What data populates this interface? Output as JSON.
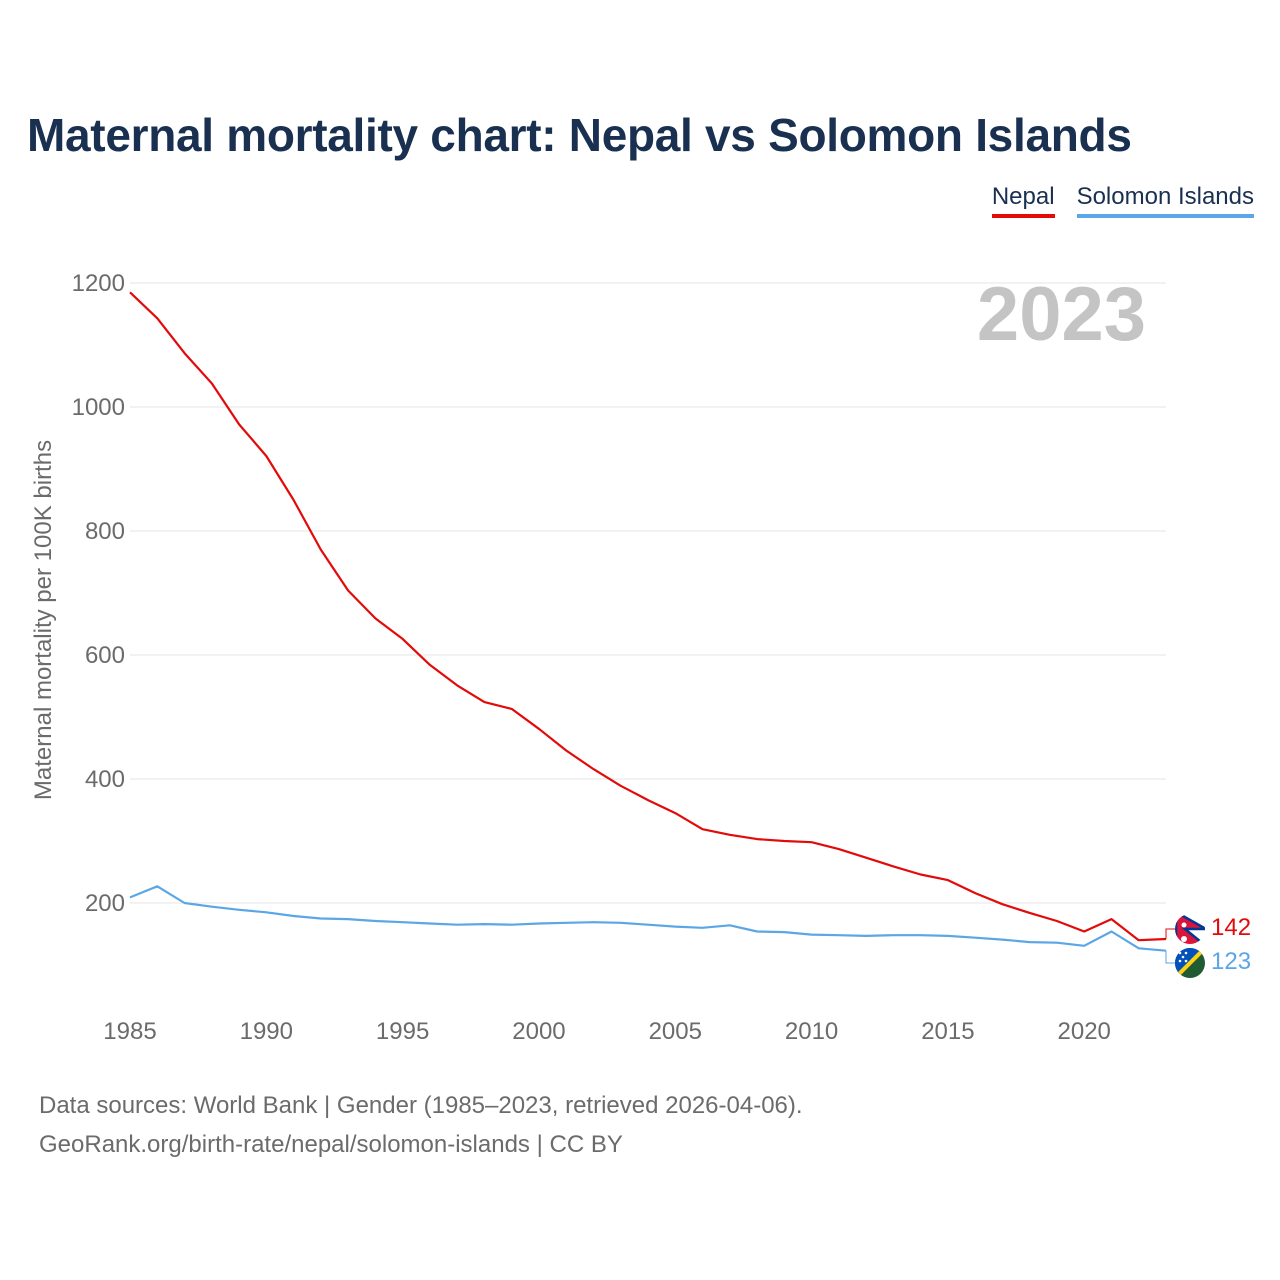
{
  "title": "Maternal mortality chart: Nepal vs Solomon Islands",
  "legend": [
    {
      "name": "Nepal",
      "color": "#e30a0a"
    },
    {
      "name": "Solomon Islands",
      "color": "#5aa6e6"
    }
  ],
  "year_watermark": "2023",
  "footer": {
    "line1": "Data sources: World Bank | Gender (1985–2023, retrieved 2026-04-06).",
    "line2": "GeoRank.org/birth-rate/nepal/solomon-islands | CC BY"
  },
  "chart_data": {
    "type": "line",
    "title": "Maternal mortality chart: Nepal vs Solomon Islands",
    "xlabel": "",
    "ylabel": "Maternal mortality per 100K births",
    "xlim": [
      1985,
      2023
    ],
    "ylim": [
      0,
      1200
    ],
    "x_ticks": [
      1985,
      1990,
      1995,
      2000,
      2005,
      2010,
      2015,
      2020
    ],
    "y_ticks": [
      200,
      400,
      600,
      800,
      1000,
      1200
    ],
    "grid": true,
    "x": [
      1985,
      1986,
      1987,
      1988,
      1989,
      1990,
      1991,
      1992,
      1993,
      1994,
      1995,
      1996,
      1997,
      1998,
      1999,
      2000,
      2001,
      2002,
      2003,
      2004,
      2005,
      2006,
      2007,
      2008,
      2009,
      2010,
      2011,
      2012,
      2013,
      2014,
      2015,
      2016,
      2017,
      2018,
      2019,
      2020,
      2021,
      2022,
      2023
    ],
    "series": [
      {
        "name": "Nepal",
        "color": "#e30a0a",
        "end_label": "142",
        "values": [
          1185,
          1143,
          1087,
          1038,
          972,
          921,
          850,
          770,
          704,
          659,
          626,
          584,
          551,
          524,
          513,
          481,
          446,
          416,
          389,
          366,
          345,
          319,
          310,
          303,
          300,
          298,
          287,
          273,
          259,
          246,
          237,
          216,
          198,
          184,
          171,
          154,
          174,
          140,
          142
        ]
      },
      {
        "name": "Solomon Islands",
        "color": "#5aa6e6",
        "end_label": "123",
        "values": [
          209,
          227,
          200,
          194,
          189,
          185,
          179,
          175,
          174,
          171,
          169,
          167,
          165,
          166,
          165,
          167,
          168,
          169,
          168,
          165,
          162,
          160,
          164,
          154,
          153,
          149,
          148,
          147,
          148,
          148,
          147,
          144,
          141,
          137,
          136,
          131,
          154,
          127,
          123
        ]
      }
    ]
  }
}
